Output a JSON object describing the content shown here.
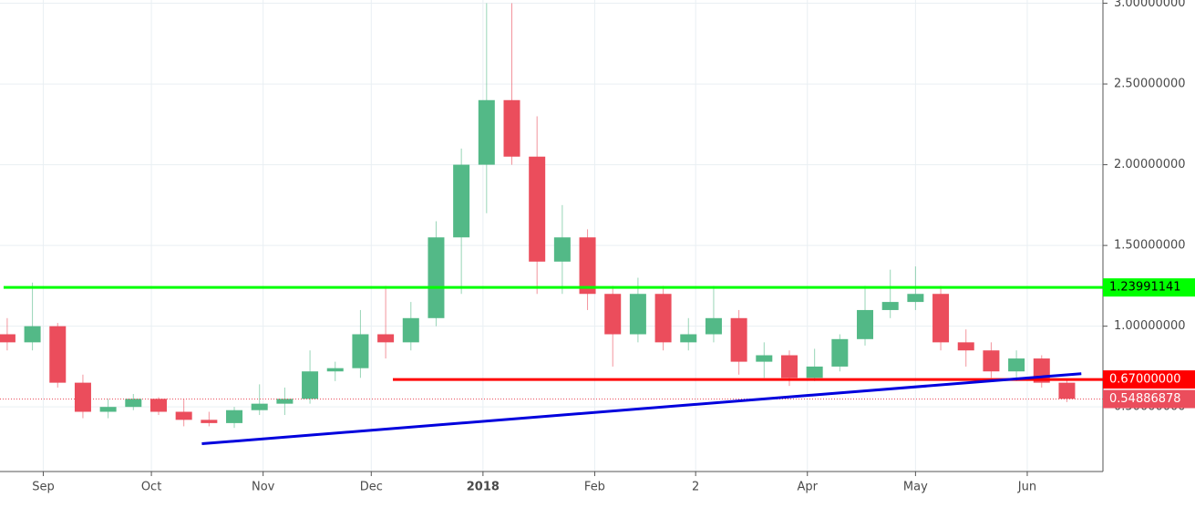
{
  "chart_data": {
    "type": "candlestick",
    "x": [
      -10,
      -3,
      4,
      11,
      18,
      25,
      32,
      39,
      46,
      53,
      60,
      67,
      74,
      81,
      88,
      95,
      102,
      109,
      116,
      123,
      130,
      137,
      144,
      151,
      158,
      165,
      172,
      179,
      186,
      193,
      200,
      207,
      214,
      221,
      228,
      235,
      242,
      249,
      256,
      263,
      270,
      277,
      284
    ],
    "open": [
      0.95,
      0.9,
      1.0,
      0.65,
      0.47,
      0.5,
      0.55,
      0.47,
      0.42,
      0.4,
      0.48,
      0.52,
      0.55,
      0.72,
      0.74,
      0.95,
      0.9,
      1.05,
      1.55,
      2.0,
      2.4,
      2.05,
      1.4,
      1.55,
      1.2,
      0.95,
      1.2,
      0.9,
      0.95,
      1.05,
      0.78,
      0.82,
      0.68,
      0.75,
      0.92,
      1.1,
      1.15,
      1.2,
      0.9,
      0.85,
      0.72,
      0.8,
      0.65
    ],
    "high": [
      1.05,
      1.27,
      1.02,
      0.7,
      0.55,
      0.58,
      0.56,
      0.55,
      0.47,
      0.5,
      0.64,
      0.62,
      0.85,
      0.78,
      1.1,
      1.25,
      1.15,
      1.65,
      2.1,
      3.0,
      3.0,
      2.3,
      1.75,
      1.6,
      1.25,
      1.3,
      1.25,
      1.05,
      1.25,
      1.1,
      0.9,
      0.85,
      0.86,
      0.95,
      1.25,
      1.35,
      1.37,
      1.25,
      0.98,
      0.9,
      0.85,
      0.82,
      0.67
    ],
    "low": [
      0.85,
      0.85,
      0.62,
      0.43,
      0.43,
      0.48,
      0.45,
      0.38,
      0.38,
      0.37,
      0.45,
      0.45,
      0.52,
      0.66,
      0.68,
      0.8,
      0.85,
      1.0,
      1.2,
      1.7,
      2.0,
      1.2,
      1.2,
      1.1,
      0.75,
      0.9,
      0.85,
      0.85,
      0.9,
      0.7,
      0.68,
      0.63,
      0.66,
      0.72,
      0.88,
      1.05,
      1.1,
      0.85,
      0.75,
      0.68,
      0.66,
      0.62,
      0.53
    ],
    "close": [
      0.9,
      1.0,
      0.65,
      0.47,
      0.5,
      0.55,
      0.47,
      0.42,
      0.4,
      0.48,
      0.52,
      0.55,
      0.72,
      0.74,
      0.95,
      0.9,
      1.05,
      1.55,
      2.0,
      2.4,
      2.05,
      1.4,
      1.55,
      1.2,
      0.95,
      1.2,
      0.9,
      0.95,
      1.05,
      0.78,
      0.82,
      0.68,
      0.75,
      0.92,
      1.1,
      1.15,
      1.2,
      0.9,
      0.85,
      0.72,
      0.8,
      0.65,
      0.55
    ],
    "up_color": "#53b987",
    "down_color": "#eb4d5c",
    "xlim": [
      -12,
      294
    ],
    "ylim": [
      0.1,
      3.02
    ],
    "xticks": [
      {
        "value": 0,
        "label": "Sep"
      },
      {
        "value": 30,
        "label": "Oct"
      },
      {
        "value": 61,
        "label": "Nov"
      },
      {
        "value": 91,
        "label": "Dec"
      },
      {
        "value": 122,
        "label": "2018"
      },
      {
        "value": 153,
        "label": "Feb"
      },
      {
        "value": 181,
        "label": "2"
      },
      {
        "value": 212,
        "label": "Apr"
      },
      {
        "value": 242,
        "label": "May"
      },
      {
        "value": 273,
        "label": "Jun"
      }
    ],
    "yticks": [
      {
        "value": 0.5,
        "label": "0.50000000"
      },
      {
        "value": 1,
        "label": "1.00000000"
      },
      {
        "value": 1.5,
        "label": "1.50000000"
      },
      {
        "value": 2,
        "label": "2.00000000"
      },
      {
        "value": 2.5,
        "label": "2.50000000"
      },
      {
        "value": 3,
        "label": "3.00000000"
      }
    ],
    "grid": true,
    "levels": [
      {
        "value": 1.23991141,
        "label": "1.23991141",
        "color": "#00ff00",
        "start": -11
      },
      {
        "value": 0.67,
        "label": "0.67000000",
        "color": "#ff0000",
        "start": 97
      }
    ],
    "trendline": {
      "x": [
        44,
        288
      ],
      "y": [
        0.272,
        0.706
      ],
      "color": "#0000dd"
    },
    "last_price": {
      "value": 0.54886878,
      "label": "0.54886878",
      "color": "#eb4d5c"
    }
  }
}
